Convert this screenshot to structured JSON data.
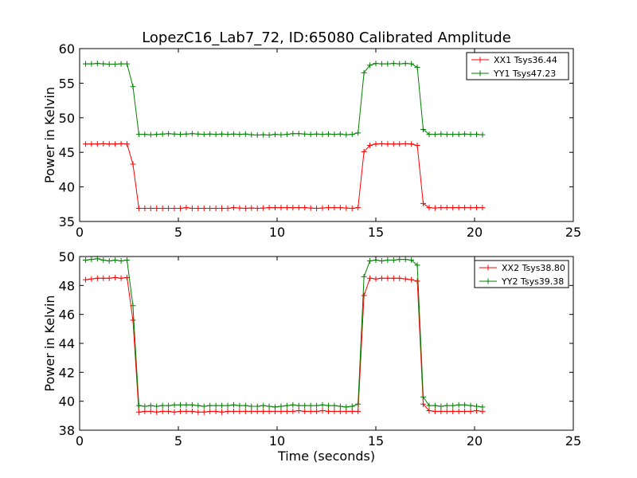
{
  "title": "LopezC16_Lab7_72, ID:65080 Calibrated Amplitude",
  "xlabel": "Time (seconds)",
  "chart_data": [
    {
      "type": "line",
      "ylabel": "Power in Kelvin",
      "xlabel": "",
      "xlim": [
        0,
        25
      ],
      "ylim": [
        35,
        60
      ],
      "xticks": [
        0,
        5,
        10,
        15,
        20,
        25
      ],
      "yticks": [
        35,
        40,
        45,
        50,
        55,
        60
      ],
      "grid": false,
      "legend_position": "top-right",
      "x": [
        0.3,
        0.6,
        0.9,
        1.2,
        1.5,
        1.8,
        2.1,
        2.4,
        2.7,
        3.0,
        3.3,
        3.6,
        3.9,
        4.2,
        4.5,
        4.8,
        5.1,
        5.4,
        5.7,
        6.0,
        6.3,
        6.6,
        6.9,
        7.2,
        7.5,
        7.8,
        8.1,
        8.4,
        8.7,
        9.0,
        9.3,
        9.6,
        9.9,
        10.2,
        10.5,
        10.8,
        11.1,
        11.4,
        11.7,
        12.0,
        12.3,
        12.6,
        12.9,
        13.2,
        13.5,
        13.8,
        14.1,
        14.4,
        14.7,
        15.0,
        15.3,
        15.6,
        15.9,
        16.2,
        16.5,
        16.8,
        17.1,
        17.4,
        17.7,
        18.0,
        18.3,
        18.6,
        18.9,
        19.2,
        19.5,
        19.8,
        20.1,
        20.4
      ],
      "series": [
        {
          "name": "XX1 Tsys36.44",
          "color": "#ff0000",
          "values": [
            46.2,
            46.2,
            46.2,
            46.25,
            46.2,
            46.2,
            46.25,
            46.2,
            43.3,
            36.9,
            36.9,
            36.9,
            36.9,
            36.9,
            36.9,
            36.9,
            36.9,
            37.0,
            36.9,
            36.9,
            36.9,
            36.9,
            36.9,
            36.9,
            36.9,
            37.0,
            36.95,
            36.9,
            36.95,
            36.9,
            36.95,
            37.0,
            37.0,
            37.0,
            37.0,
            37.0,
            37.0,
            37.0,
            36.95,
            36.9,
            36.95,
            37.0,
            37.0,
            37.0,
            36.95,
            36.9,
            37.0,
            45.1,
            46.0,
            46.2,
            46.25,
            46.2,
            46.2,
            46.2,
            46.25,
            46.2,
            46.0,
            37.6,
            37.0,
            36.95,
            37.0,
            37.0,
            37.0,
            37.0,
            37.0,
            37.0,
            37.0,
            37.0
          ]
        },
        {
          "name": "YY1 Tsys47.23",
          "color": "#008000",
          "values": [
            57.8,
            57.8,
            57.85,
            57.8,
            57.75,
            57.75,
            57.8,
            57.8,
            54.5,
            47.6,
            47.6,
            47.55,
            47.6,
            47.65,
            47.7,
            47.65,
            47.6,
            47.65,
            47.7,
            47.65,
            47.6,
            47.65,
            47.6,
            47.65,
            47.6,
            47.65,
            47.6,
            47.65,
            47.55,
            47.5,
            47.55,
            47.5,
            47.6,
            47.55,
            47.6,
            47.7,
            47.7,
            47.65,
            47.6,
            47.65,
            47.6,
            47.65,
            47.6,
            47.65,
            47.55,
            47.6,
            47.8,
            56.5,
            57.6,
            57.85,
            57.8,
            57.8,
            57.85,
            57.8,
            57.85,
            57.8,
            57.3,
            48.3,
            47.6,
            47.6,
            47.65,
            47.6,
            47.6,
            47.6,
            47.65,
            47.6,
            47.6,
            47.55
          ]
        }
      ]
    },
    {
      "type": "line",
      "ylabel": "Power in Kelvin",
      "xlabel": "Time (seconds)",
      "xlim": [
        0,
        25
      ],
      "ylim": [
        38,
        50
      ],
      "xticks": [
        0,
        5,
        10,
        15,
        20,
        25
      ],
      "yticks": [
        38,
        40,
        42,
        44,
        46,
        48,
        50
      ],
      "grid": false,
      "legend_position": "top-right",
      "x": [
        0.3,
        0.6,
        0.9,
        1.2,
        1.5,
        1.8,
        2.1,
        2.4,
        2.7,
        3.0,
        3.3,
        3.6,
        3.9,
        4.2,
        4.5,
        4.8,
        5.1,
        5.4,
        5.7,
        6.0,
        6.3,
        6.6,
        6.9,
        7.2,
        7.5,
        7.8,
        8.1,
        8.4,
        8.7,
        9.0,
        9.3,
        9.6,
        9.9,
        10.2,
        10.5,
        10.8,
        11.1,
        11.4,
        11.7,
        12.0,
        12.3,
        12.6,
        12.9,
        13.2,
        13.5,
        13.8,
        14.1,
        14.4,
        14.7,
        15.0,
        15.3,
        15.6,
        15.9,
        16.2,
        16.5,
        16.8,
        17.1,
        17.4,
        17.7,
        18.0,
        18.3,
        18.6,
        18.9,
        19.2,
        19.5,
        19.8,
        20.1,
        20.4
      ],
      "series": [
        {
          "name": "XX2 Tsys38.80",
          "color": "#ff0000",
          "values": [
            48.4,
            48.45,
            48.5,
            48.5,
            48.5,
            48.55,
            48.5,
            48.55,
            45.6,
            39.25,
            39.3,
            39.3,
            39.25,
            39.3,
            39.3,
            39.25,
            39.3,
            39.3,
            39.3,
            39.25,
            39.25,
            39.3,
            39.3,
            39.25,
            39.3,
            39.3,
            39.3,
            39.3,
            39.3,
            39.3,
            39.3,
            39.3,
            39.3,
            39.3,
            39.3,
            39.3,
            39.35,
            39.3,
            39.3,
            39.3,
            39.35,
            39.3,
            39.3,
            39.3,
            39.3,
            39.3,
            39.3,
            47.3,
            48.5,
            48.45,
            48.5,
            48.5,
            48.5,
            48.5,
            48.45,
            48.4,
            48.3,
            39.8,
            39.35,
            39.3,
            39.3,
            39.3,
            39.3,
            39.3,
            39.3,
            39.3,
            39.35,
            39.3
          ]
        },
        {
          "name": "YY2 Tsys39.38",
          "color": "#008000",
          "values": [
            49.75,
            49.8,
            49.85,
            49.75,
            49.7,
            49.75,
            49.7,
            49.75,
            46.6,
            39.7,
            39.65,
            39.7,
            39.65,
            39.7,
            39.7,
            39.75,
            39.75,
            39.75,
            39.75,
            39.7,
            39.65,
            39.7,
            39.7,
            39.7,
            39.7,
            39.75,
            39.7,
            39.7,
            39.65,
            39.65,
            39.7,
            39.65,
            39.6,
            39.65,
            39.7,
            39.75,
            39.7,
            39.7,
            39.7,
            39.7,
            39.75,
            39.7,
            39.7,
            39.65,
            39.6,
            39.65,
            39.8,
            48.6,
            49.7,
            49.75,
            49.7,
            49.75,
            49.75,
            49.8,
            49.8,
            49.75,
            49.4,
            40.3,
            39.7,
            39.7,
            39.65,
            39.7,
            39.7,
            39.75,
            39.75,
            39.7,
            39.65,
            39.6
          ]
        }
      ]
    }
  ]
}
